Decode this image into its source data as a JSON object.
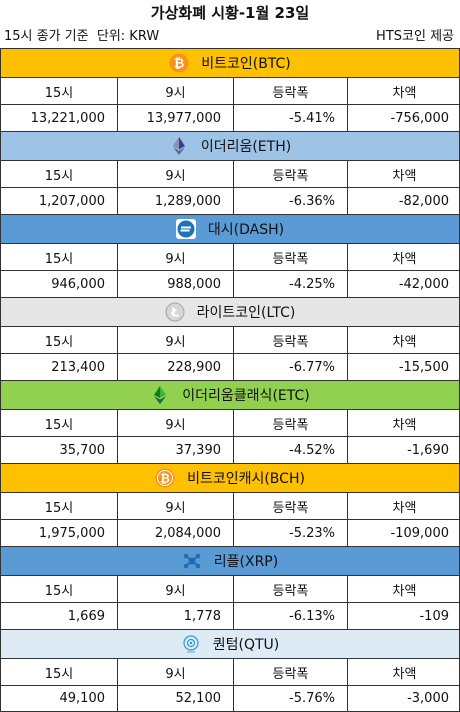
{
  "title": "가상화폐 시황-1월 23일",
  "meta": {
    "left": "15시 종가 기준  단위: KRW",
    "right": "HTS코인 제공"
  },
  "columns": [
    "15시",
    "9시",
    "등락폭",
    "차액"
  ],
  "coins": [
    {
      "name": "비트코인(BTC)",
      "icon": "bitcoin-icon",
      "color": "#FFC000",
      "values": [
        "13,221,000",
        "13,977,000",
        "-5.41%",
        "-756,000"
      ]
    },
    {
      "name": "이더리움(ETH)",
      "icon": "ethereum-icon",
      "color": "#9DC3E6",
      "values": [
        "1,207,000",
        "1,289,000",
        "-6.36%",
        "-82,000"
      ]
    },
    {
      "name": "대시(DASH)",
      "icon": "dash-icon",
      "color": "#5B9BD5",
      "values": [
        "946,000",
        "988,000",
        "-4.25%",
        "-42,000"
      ]
    },
    {
      "name": "라이트코인(LTC)",
      "icon": "litecoin-icon",
      "color": "#E7E6E6",
      "values": [
        "213,400",
        "228,900",
        "-6.77%",
        "-15,500"
      ]
    },
    {
      "name": "이더리움클래식(ETC)",
      "icon": "ethereum-classic-icon",
      "color": "#92D050",
      "values": [
        "35,700",
        "37,390",
        "-4.52%",
        "-1,690"
      ]
    },
    {
      "name": "비트코인캐시(BCH)",
      "icon": "bitcoin-cash-icon",
      "color": "#FFC000",
      "values": [
        "1,975,000",
        "2,084,000",
        "-5.23%",
        "-109,000"
      ]
    },
    {
      "name": "리플(XRP)",
      "icon": "ripple-icon",
      "color": "#5B9BD5",
      "values": [
        "1,669",
        "1,778",
        "-6.13%",
        "-109"
      ]
    },
    {
      "name": "퀀텀(QTU)",
      "icon": "qtum-icon",
      "color": "#DDEBF7",
      "values": [
        "49,100",
        "52,100",
        "-5.76%",
        "-3,000"
      ]
    }
  ]
}
